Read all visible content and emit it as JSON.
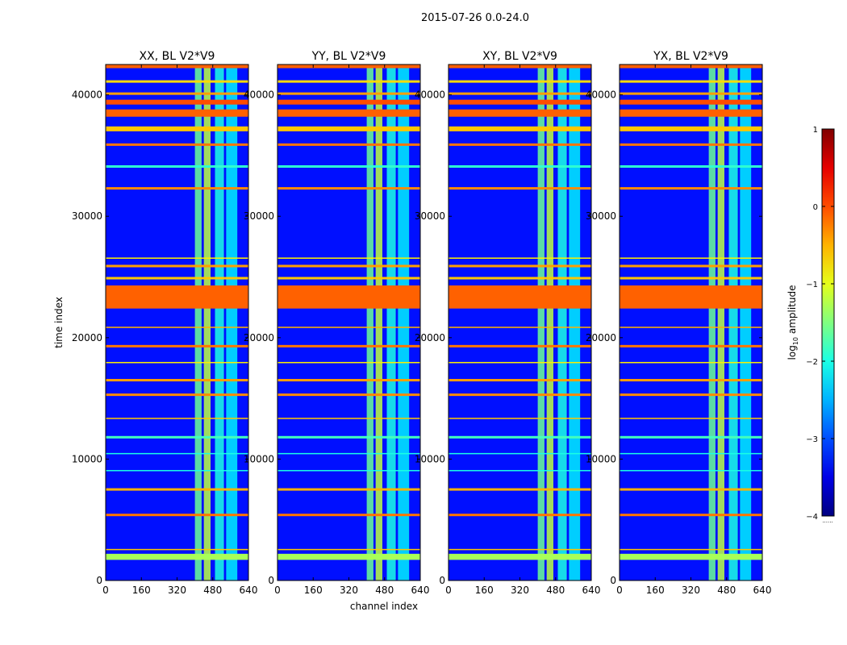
{
  "chart_data": {
    "type": "heatmap",
    "suptitle": "2015-07-26 0.0-24.0",
    "xlabel": "channel index",
    "ylabel": "time index",
    "xlim": [
      0,
      640
    ],
    "ylim": [
      0,
      42500
    ],
    "xticks": [
      0,
      160,
      320,
      480,
      640
    ],
    "yticks": [
      0,
      10000,
      20000,
      30000,
      40000
    ],
    "panels": [
      {
        "title": "XX, BL V2*V9"
      },
      {
        "title": "YY, BL V2*V9"
      },
      {
        "title": "XY, BL V2*V9"
      },
      {
        "title": "YX, BL V2*V9"
      }
    ],
    "colorbar": {
      "label": "log",
      "label_sub": "10",
      "label_tail": " amplitude",
      "ticks": [
        -4,
        -3,
        -2,
        -1,
        0,
        1
      ],
      "tick_labels": [
        "−4",
        "−3",
        "−2",
        "−1",
        "0",
        "1"
      ],
      "range": [
        -4,
        1
      ],
      "colormap": "jet",
      "extra_text": "......"
    },
    "background_level": -3.3,
    "bright_channel_bands": [
      {
        "from": 400,
        "to": 430,
        "level": -1.6
      },
      {
        "from": 440,
        "to": 470,
        "level": -1.2
      },
      {
        "from": 490,
        "to": 530,
        "level": -2.0
      },
      {
        "from": 540,
        "to": 590,
        "level": -2.2
      }
    ],
    "flagged_time_bands": [
      {
        "from": 1700,
        "to": 2200,
        "level": -1.3
      },
      {
        "from": 2500,
        "to": 2600,
        "level": -0.6
      },
      {
        "from": 5300,
        "to": 5500,
        "level": -0.2
      },
      {
        "from": 7400,
        "to": 7600,
        "level": -0.5
      },
      {
        "from": 9000,
        "to": 9100,
        "level": -2.0
      },
      {
        "from": 10400,
        "to": 10500,
        "level": -2.0
      },
      {
        "from": 11700,
        "to": 11900,
        "level": -1.8
      },
      {
        "from": 13300,
        "to": 13400,
        "level": -0.6
      },
      {
        "from": 15200,
        "to": 15400,
        "level": -0.3
      },
      {
        "from": 16400,
        "to": 16600,
        "level": -0.4
      },
      {
        "from": 17900,
        "to": 18000,
        "level": -0.8
      },
      {
        "from": 19200,
        "to": 19400,
        "level": -0.2
      },
      {
        "from": 20800,
        "to": 20900,
        "level": -0.5
      },
      {
        "from": 22400,
        "to": 24300,
        "level": -0.1
      },
      {
        "from": 24800,
        "to": 25000,
        "level": -0.6
      },
      {
        "from": 25800,
        "to": 26000,
        "level": -0.4
      },
      {
        "from": 26500,
        "to": 26600,
        "level": -0.8
      },
      {
        "from": 32200,
        "to": 32400,
        "level": -0.3
      },
      {
        "from": 34000,
        "to": 34200,
        "level": -1.9
      },
      {
        "from": 35800,
        "to": 36000,
        "level": -0.2
      },
      {
        "from": 37000,
        "to": 37400,
        "level": -0.6
      },
      {
        "from": 38200,
        "to": 38800,
        "level": -0.1
      },
      {
        "from": 39200,
        "to": 39600,
        "level": 0.0
      },
      {
        "from": 40000,
        "to": 40200,
        "level": -0.4
      },
      {
        "from": 41000,
        "to": 41200,
        "level": -0.7
      },
      {
        "from": 42200,
        "to": 42500,
        "level": -0.1
      }
    ]
  }
}
